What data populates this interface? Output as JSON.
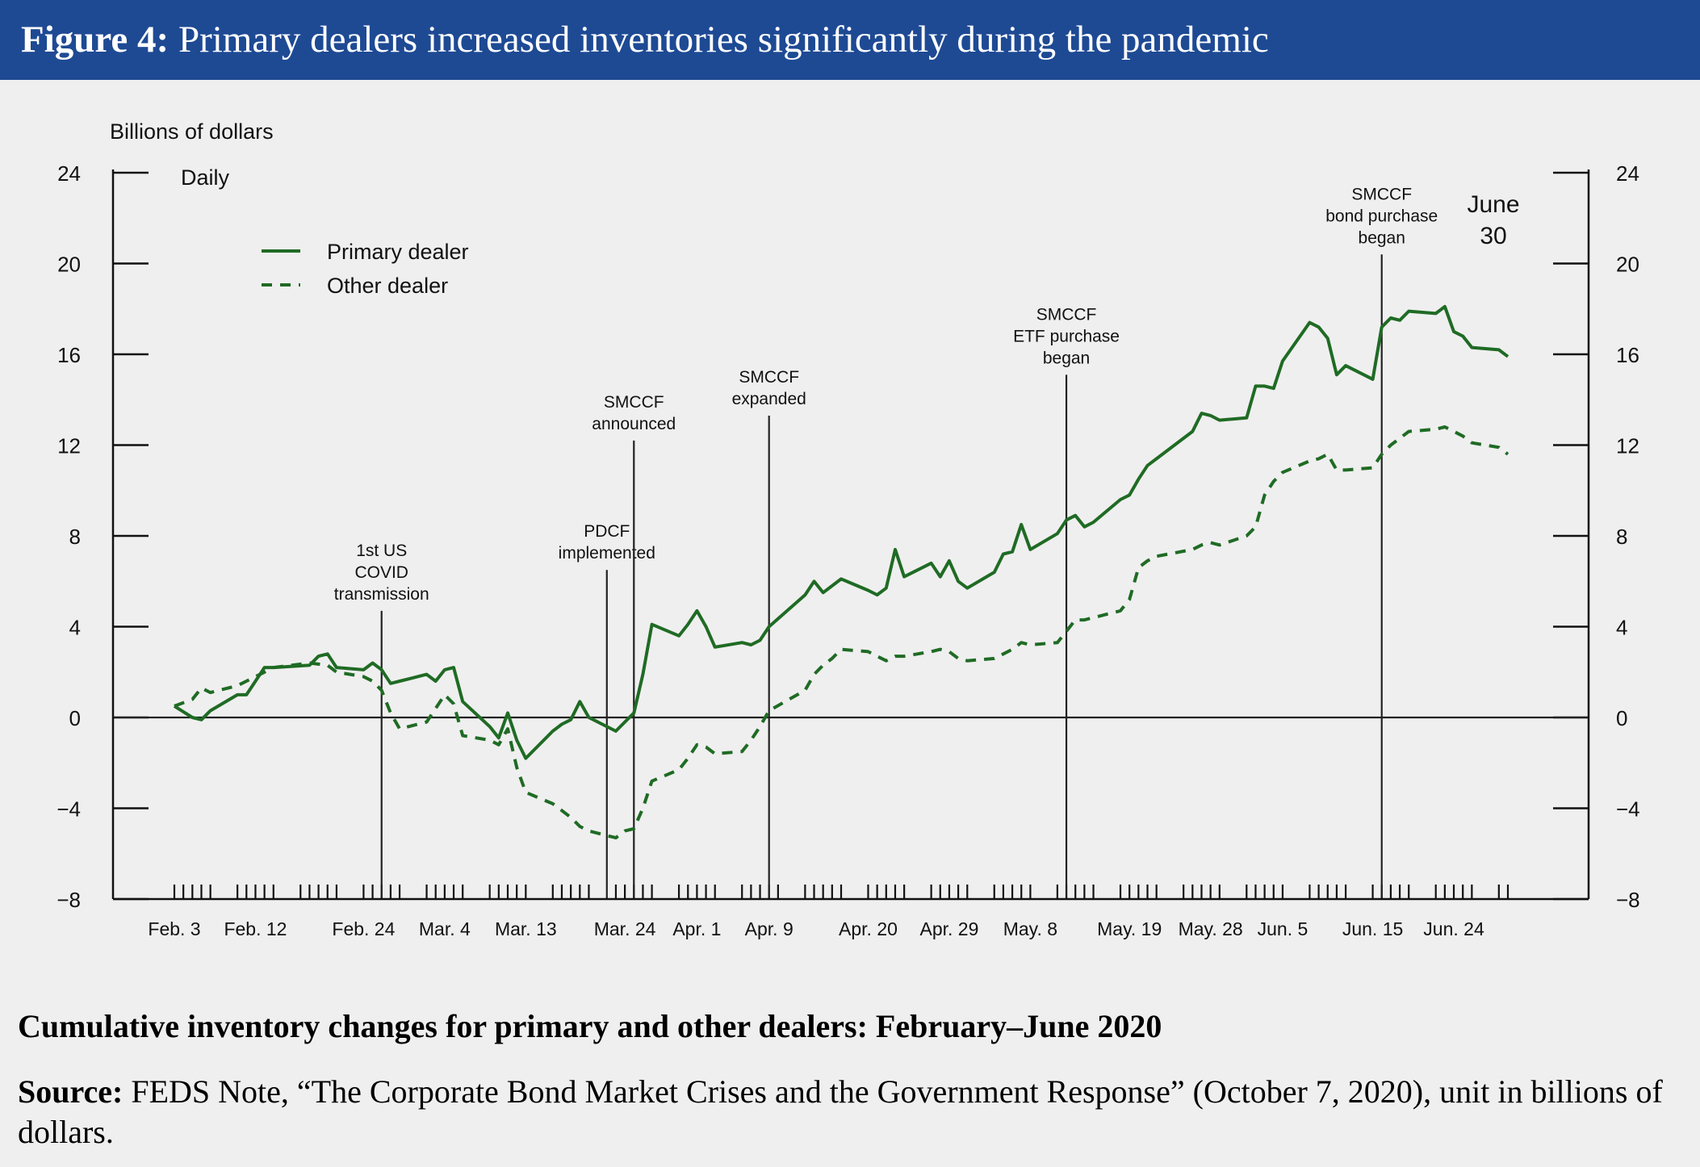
{
  "figure": {
    "label": "Figure 4:",
    "title": "Primary dealers increased inventories significantly during the pandemic"
  },
  "caption": "Cumulative inventory changes for primary and other dealers: February–June 2020",
  "source": {
    "label": "Source:",
    "text": "FEDS Note, “The Corporate Bond Market Crises and the Government Response” (October 7, 2020), unit in billions of dollars."
  },
  "colors": {
    "header_bg": "#1e4a94",
    "series": "#1f6b24",
    "background": "#efefef"
  },
  "chart_data": {
    "type": "line",
    "ylabel": "Billions of dollars",
    "frequency_label": "Daily",
    "ylim": [
      -8,
      24
    ],
    "yticks": [
      -8,
      -4,
      0,
      4,
      8,
      12,
      16,
      20,
      24
    ],
    "xlim": [
      "2020-02-03",
      "2020-06-30"
    ],
    "xticks": [
      {
        "date": "2020-02-03",
        "label": "Feb. 3"
      },
      {
        "date": "2020-02-12",
        "label": "Feb. 12"
      },
      {
        "date": "2020-02-24",
        "label": "Feb. 24"
      },
      {
        "date": "2020-03-04",
        "label": "Mar. 4"
      },
      {
        "date": "2020-03-13",
        "label": "Mar. 13"
      },
      {
        "date": "2020-03-24",
        "label": "Mar. 24"
      },
      {
        "date": "2020-04-01",
        "label": "Apr. 1"
      },
      {
        "date": "2020-04-09",
        "label": "Apr. 9"
      },
      {
        "date": "2020-04-20",
        "label": "Apr. 20"
      },
      {
        "date": "2020-04-29",
        "label": "Apr. 29"
      },
      {
        "date": "2020-05-08",
        "label": "May. 8"
      },
      {
        "date": "2020-05-19",
        "label": "May. 19"
      },
      {
        "date": "2020-05-28",
        "label": "May. 28"
      },
      {
        "date": "2020-06-05",
        "label": "Jun. 5"
      },
      {
        "date": "2020-06-15",
        "label": "Jun. 15"
      },
      {
        "date": "2020-06-24",
        "label": "Jun. 24"
      }
    ],
    "legend_position": "top-left",
    "series": [
      {
        "name": "Primary dealer",
        "style": "solid",
        "points": [
          [
            "2020-02-03",
            0.5
          ],
          [
            "2020-02-05",
            0.0
          ],
          [
            "2020-02-06",
            -0.1
          ],
          [
            "2020-02-07",
            0.3
          ],
          [
            "2020-02-10",
            1.0
          ],
          [
            "2020-02-11",
            1.0
          ],
          [
            "2020-02-12",
            1.6
          ],
          [
            "2020-02-13",
            2.2
          ],
          [
            "2020-02-14",
            2.2
          ],
          [
            "2020-02-18",
            2.3
          ],
          [
            "2020-02-19",
            2.7
          ],
          [
            "2020-02-20",
            2.8
          ],
          [
            "2020-02-21",
            2.2
          ],
          [
            "2020-02-24",
            2.1
          ],
          [
            "2020-02-25",
            2.4
          ],
          [
            "2020-02-26",
            2.1
          ],
          [
            "2020-02-27",
            1.5
          ],
          [
            "2020-02-28",
            1.6
          ],
          [
            "2020-03-02",
            1.9
          ],
          [
            "2020-03-03",
            1.6
          ],
          [
            "2020-03-04",
            2.1
          ],
          [
            "2020-03-05",
            2.2
          ],
          [
            "2020-03-06",
            0.7
          ],
          [
            "2020-03-09",
            -0.4
          ],
          [
            "2020-03-10",
            -0.9
          ],
          [
            "2020-03-11",
            0.2
          ],
          [
            "2020-03-12",
            -1.0
          ],
          [
            "2020-03-13",
            -1.8
          ],
          [
            "2020-03-16",
            -0.6
          ],
          [
            "2020-03-17",
            -0.3
          ],
          [
            "2020-03-18",
            -0.1
          ],
          [
            "2020-03-19",
            0.7
          ],
          [
            "2020-03-20",
            0.0
          ],
          [
            "2020-03-23",
            -0.6
          ],
          [
            "2020-03-24",
            -0.2
          ],
          [
            "2020-03-25",
            0.2
          ],
          [
            "2020-03-26",
            1.9
          ],
          [
            "2020-03-27",
            4.1
          ],
          [
            "2020-03-30",
            3.6
          ],
          [
            "2020-03-31",
            4.1
          ],
          [
            "2020-04-01",
            4.7
          ],
          [
            "2020-04-02",
            4.0
          ],
          [
            "2020-04-03",
            3.1
          ],
          [
            "2020-04-06",
            3.3
          ],
          [
            "2020-04-07",
            3.2
          ],
          [
            "2020-04-08",
            3.4
          ],
          [
            "2020-04-09",
            4.0
          ],
          [
            "2020-04-13",
            5.4
          ],
          [
            "2020-04-14",
            6.0
          ],
          [
            "2020-04-15",
            5.5
          ],
          [
            "2020-04-16",
            5.8
          ],
          [
            "2020-04-17",
            6.1
          ],
          [
            "2020-04-20",
            5.6
          ],
          [
            "2020-04-21",
            5.4
          ],
          [
            "2020-04-22",
            5.7
          ],
          [
            "2020-04-23",
            7.4
          ],
          [
            "2020-04-24",
            6.2
          ],
          [
            "2020-04-27",
            6.8
          ],
          [
            "2020-04-28",
            6.2
          ],
          [
            "2020-04-29",
            6.9
          ],
          [
            "2020-04-30",
            6.0
          ],
          [
            "2020-05-01",
            5.7
          ],
          [
            "2020-05-04",
            6.4
          ],
          [
            "2020-05-05",
            7.2
          ],
          [
            "2020-05-06",
            7.3
          ],
          [
            "2020-05-07",
            8.5
          ],
          [
            "2020-05-08",
            7.4
          ],
          [
            "2020-05-11",
            8.1
          ],
          [
            "2020-05-12",
            8.7
          ],
          [
            "2020-05-13",
            8.9
          ],
          [
            "2020-05-14",
            8.4
          ],
          [
            "2020-05-15",
            8.6
          ],
          [
            "2020-05-18",
            9.6
          ],
          [
            "2020-05-19",
            9.8
          ],
          [
            "2020-05-20",
            10.5
          ],
          [
            "2020-05-21",
            11.1
          ],
          [
            "2020-05-22",
            11.4
          ],
          [
            "2020-05-26",
            12.6
          ],
          [
            "2020-05-27",
            13.4
          ],
          [
            "2020-05-28",
            13.3
          ],
          [
            "2020-05-29",
            13.1
          ],
          [
            "2020-06-01",
            13.2
          ],
          [
            "2020-06-02",
            14.6
          ],
          [
            "2020-06-03",
            14.6
          ],
          [
            "2020-06-04",
            14.5
          ],
          [
            "2020-06-05",
            15.7
          ],
          [
            "2020-06-08",
            17.4
          ],
          [
            "2020-06-09",
            17.2
          ],
          [
            "2020-06-10",
            16.7
          ],
          [
            "2020-06-11",
            15.1
          ],
          [
            "2020-06-12",
            15.5
          ],
          [
            "2020-06-15",
            14.9
          ],
          [
            "2020-06-16",
            17.2
          ],
          [
            "2020-06-17",
            17.6
          ],
          [
            "2020-06-18",
            17.5
          ],
          [
            "2020-06-19",
            17.9
          ],
          [
            "2020-06-22",
            17.8
          ],
          [
            "2020-06-23",
            18.1
          ],
          [
            "2020-06-24",
            17.0
          ],
          [
            "2020-06-25",
            16.8
          ],
          [
            "2020-06-26",
            16.3
          ],
          [
            "2020-06-29",
            16.2
          ],
          [
            "2020-06-30",
            15.9
          ]
        ]
      },
      {
        "name": "Other dealer",
        "style": "dashed",
        "points": [
          [
            "2020-02-03",
            0.5
          ],
          [
            "2020-02-05",
            0.8
          ],
          [
            "2020-02-06",
            1.3
          ],
          [
            "2020-02-07",
            1.1
          ],
          [
            "2020-02-10",
            1.4
          ],
          [
            "2020-02-12",
            1.8
          ],
          [
            "2020-02-14",
            2.2
          ],
          [
            "2020-02-18",
            2.4
          ],
          [
            "2020-02-20",
            2.3
          ],
          [
            "2020-02-21",
            2.0
          ],
          [
            "2020-02-24",
            1.8
          ],
          [
            "2020-02-25",
            1.6
          ],
          [
            "2020-02-26",
            1.2
          ],
          [
            "2020-02-27",
            0.2
          ],
          [
            "2020-02-28",
            -0.5
          ],
          [
            "2020-03-02",
            -0.2
          ],
          [
            "2020-03-03",
            0.4
          ],
          [
            "2020-03-04",
            1.0
          ],
          [
            "2020-03-05",
            0.6
          ],
          [
            "2020-03-06",
            -0.8
          ],
          [
            "2020-03-09",
            -1.0
          ],
          [
            "2020-03-10",
            -1.2
          ],
          [
            "2020-03-11",
            -0.5
          ],
          [
            "2020-03-12",
            -2.2
          ],
          [
            "2020-03-13",
            -3.3
          ],
          [
            "2020-03-16",
            -3.8
          ],
          [
            "2020-03-17",
            -4.1
          ],
          [
            "2020-03-18",
            -4.4
          ],
          [
            "2020-03-19",
            -4.8
          ],
          [
            "2020-03-20",
            -5.0
          ],
          [
            "2020-03-23",
            -5.3
          ],
          [
            "2020-03-24",
            -5.0
          ],
          [
            "2020-03-25",
            -4.9
          ],
          [
            "2020-03-26",
            -4.0
          ],
          [
            "2020-03-27",
            -2.8
          ],
          [
            "2020-03-30",
            -2.3
          ],
          [
            "2020-03-31",
            -1.8
          ],
          [
            "2020-04-01",
            -1.2
          ],
          [
            "2020-04-02",
            -1.3
          ],
          [
            "2020-04-03",
            -1.6
          ],
          [
            "2020-04-06",
            -1.5
          ],
          [
            "2020-04-07",
            -1.0
          ],
          [
            "2020-04-08",
            -0.4
          ],
          [
            "2020-04-09",
            0.3
          ],
          [
            "2020-04-13",
            1.2
          ],
          [
            "2020-04-14",
            1.9
          ],
          [
            "2020-04-15",
            2.3
          ],
          [
            "2020-04-16",
            2.6
          ],
          [
            "2020-04-17",
            3.0
          ],
          [
            "2020-04-20",
            2.9
          ],
          [
            "2020-04-21",
            2.7
          ],
          [
            "2020-04-22",
            2.5
          ],
          [
            "2020-04-23",
            2.7
          ],
          [
            "2020-04-24",
            2.7
          ],
          [
            "2020-04-27",
            2.9
          ],
          [
            "2020-04-28",
            3.0
          ],
          [
            "2020-04-29",
            2.9
          ],
          [
            "2020-04-30",
            2.6
          ],
          [
            "2020-05-01",
            2.5
          ],
          [
            "2020-05-04",
            2.6
          ],
          [
            "2020-05-05",
            2.8
          ],
          [
            "2020-05-06",
            3.0
          ],
          [
            "2020-05-07",
            3.3
          ],
          [
            "2020-05-08",
            3.2
          ],
          [
            "2020-05-11",
            3.3
          ],
          [
            "2020-05-12",
            3.8
          ],
          [
            "2020-05-13",
            4.3
          ],
          [
            "2020-05-14",
            4.3
          ],
          [
            "2020-05-15",
            4.4
          ],
          [
            "2020-05-18",
            4.7
          ],
          [
            "2020-05-19",
            5.2
          ],
          [
            "2020-05-20",
            6.6
          ],
          [
            "2020-05-21",
            6.9
          ],
          [
            "2020-05-22",
            7.1
          ],
          [
            "2020-05-26",
            7.4
          ],
          [
            "2020-05-27",
            7.6
          ],
          [
            "2020-05-28",
            7.7
          ],
          [
            "2020-05-29",
            7.6
          ],
          [
            "2020-06-01",
            8.0
          ],
          [
            "2020-06-02",
            8.4
          ],
          [
            "2020-06-03",
            9.8
          ],
          [
            "2020-06-04",
            10.4
          ],
          [
            "2020-06-05",
            10.8
          ],
          [
            "2020-06-08",
            11.3
          ],
          [
            "2020-06-09",
            11.4
          ],
          [
            "2020-06-10",
            11.6
          ],
          [
            "2020-06-11",
            10.9
          ],
          [
            "2020-06-12",
            10.9
          ],
          [
            "2020-06-15",
            11.0
          ],
          [
            "2020-06-16",
            11.6
          ],
          [
            "2020-06-17",
            12.0
          ],
          [
            "2020-06-18",
            12.3
          ],
          [
            "2020-06-19",
            12.6
          ],
          [
            "2020-06-22",
            12.7
          ],
          [
            "2020-06-23",
            12.8
          ],
          [
            "2020-06-24",
            12.6
          ],
          [
            "2020-06-25",
            12.4
          ],
          [
            "2020-06-26",
            12.1
          ],
          [
            "2020-06-29",
            11.9
          ],
          [
            "2020-06-30",
            11.6
          ]
        ]
      }
    ],
    "events": [
      {
        "date": "2020-02-26",
        "top_value": 4.7,
        "lines": [
          "1st US",
          "COVID",
          "transmission"
        ]
      },
      {
        "date": "2020-03-22",
        "top_value": 6.5,
        "lines": [
          "PDCF",
          "implemented"
        ]
      },
      {
        "date": "2020-03-25",
        "top_value": 12.2,
        "lines": [
          "SMCCF",
          "announced"
        ]
      },
      {
        "date": "2020-04-09",
        "top_value": 13.3,
        "lines": [
          "SMCCF",
          "expanded"
        ]
      },
      {
        "date": "2020-05-12",
        "top_value": 15.1,
        "lines": [
          "SMCCF",
          "ETF purchase",
          "began"
        ]
      },
      {
        "date": "2020-06-16",
        "top_value": 20.4,
        "lines": [
          "SMCCF",
          "bond purchase",
          "began"
        ]
      }
    ],
    "end_annotation": [
      "June",
      "30"
    ]
  }
}
